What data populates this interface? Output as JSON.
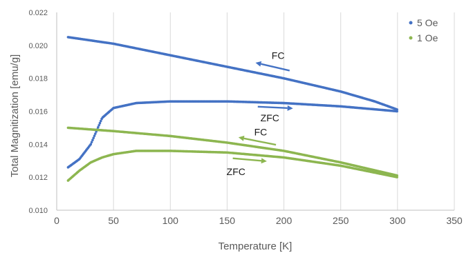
{
  "chart_data": {
    "type": "scatter",
    "xlabel": "Temperature [K]",
    "ylabel": "Total Magnitization [emu/g]",
    "xlim": [
      0,
      350
    ],
    "ylim": [
      0.01,
      0.022
    ],
    "x_ticks": [
      "0",
      "50",
      "100",
      "150",
      "200",
      "250",
      "300",
      "350"
    ],
    "y_ticks": [
      "0.010",
      "0.012",
      "0.014",
      "0.016",
      "0.018",
      "0.020",
      "0.022"
    ],
    "grid": "vertical",
    "legend_position": "top-right",
    "series": [
      {
        "name": "5 Oe",
        "color": "#4472C4",
        "curves": [
          {
            "label": "FC",
            "x": [
              10,
              50,
              100,
              150,
              200,
              250,
              280,
              300
            ],
            "y": [
              0.0205,
              0.0201,
              0.0194,
              0.0187,
              0.018,
              0.0172,
              0.0166,
              0.0161
            ]
          },
          {
            "label": "ZFC",
            "x": [
              10,
              20,
              30,
              40,
              50,
              70,
              100,
              150,
              200,
              250,
              300
            ],
            "y": [
              0.0126,
              0.0131,
              0.014,
              0.0156,
              0.0162,
              0.0165,
              0.0166,
              0.0166,
              0.0165,
              0.0163,
              0.016
            ]
          }
        ]
      },
      {
        "name": "1 Oe",
        "color": "#8DB650",
        "curves": [
          {
            "label": "FC",
            "x": [
              10,
              50,
              100,
              150,
              200,
              250,
              300
            ],
            "y": [
              0.015,
              0.0148,
              0.0145,
              0.0141,
              0.0136,
              0.0129,
              0.0121
            ]
          },
          {
            "label": "ZFC",
            "x": [
              10,
              20,
              30,
              40,
              50,
              70,
              100,
              150,
              200,
              250,
              300
            ],
            "y": [
              0.0118,
              0.0124,
              0.0129,
              0.0132,
              0.0134,
              0.0136,
              0.0136,
              0.0135,
              0.0132,
              0.0127,
              0.012
            ]
          }
        ]
      }
    ],
    "annotations": [
      {
        "text": "FC",
        "series": "5 Oe",
        "arrow_from": [
          205,
          0.01847
        ],
        "arrow_to": [
          175,
          0.01895
        ]
      },
      {
        "text": "ZFC",
        "series": "5 Oe",
        "arrow_from": [
          177,
          0.01628
        ],
        "arrow_to": [
          208,
          0.01618
        ]
      },
      {
        "text": "FC",
        "series": "1 Oe",
        "arrow_from": [
          193,
          0.01397
        ],
        "arrow_to": [
          160,
          0.01442
        ]
      },
      {
        "text": "ZFC",
        "series": "1 Oe",
        "arrow_from": [
          155,
          0.01315
        ],
        "arrow_to": [
          185,
          0.01297
        ]
      }
    ]
  }
}
